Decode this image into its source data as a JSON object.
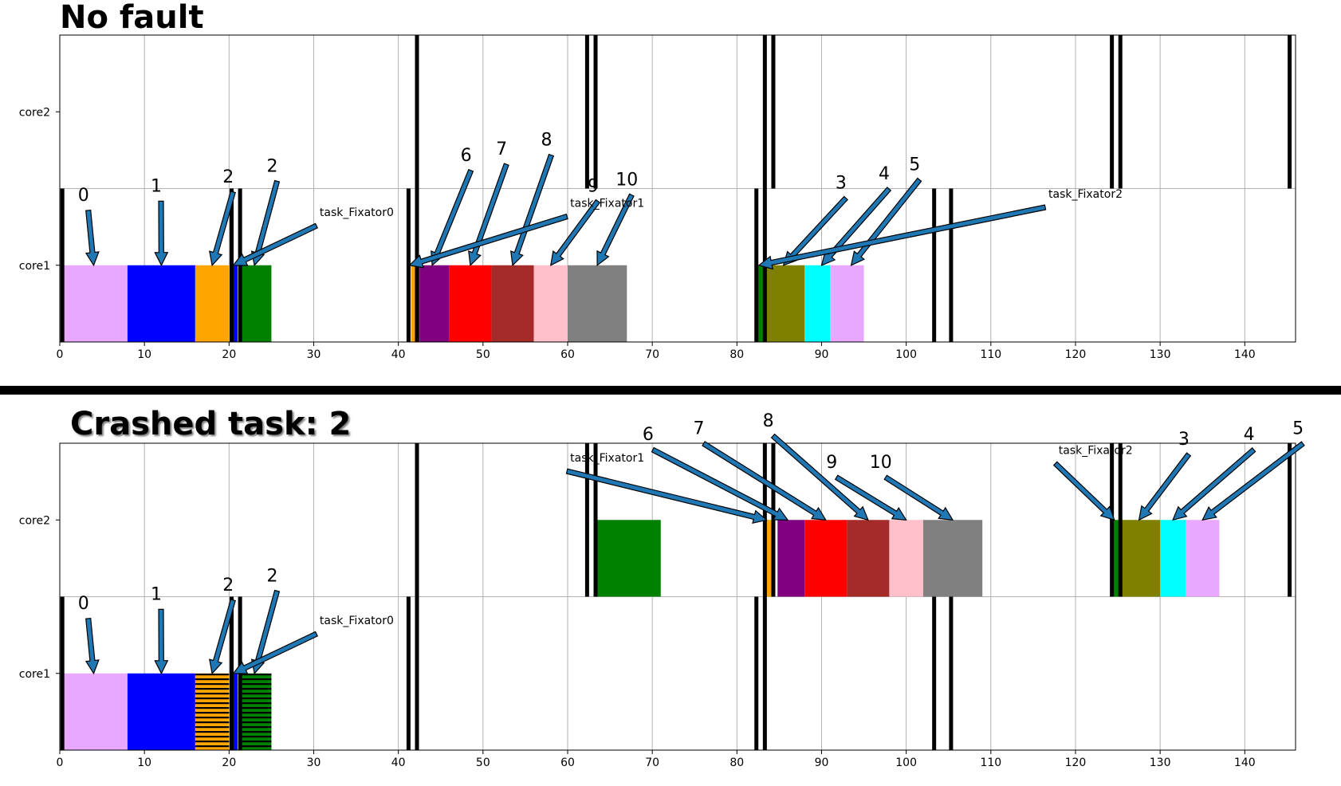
{
  "colors": {
    "0": "#e8a8ff",
    "1": "#0000ff",
    "2": "#ffa500",
    "f": "#008000",
    "6": "#800080",
    "7": "#ff0000",
    "8": "#a52a2a",
    "9": "#ffc0cb",
    "10": "#808080",
    "3": "#808000",
    "4": "#00ffff",
    "5": "#e8a8ff",
    "arrow": "#1f77b4",
    "grid": "#b0b0b0"
  },
  "chart_data": [
    {
      "type": "bar",
      "orientation": "horizontal-timeline",
      "title": "No fault",
      "categories": [
        "core1",
        "core2"
      ],
      "xlim": [
        0,
        146
      ],
      "xticks": [
        0,
        10,
        20,
        30,
        40,
        50,
        60,
        70,
        80,
        90,
        100,
        110,
        120,
        130,
        140
      ],
      "grid": true,
      "bars": [
        {
          "core": "core1",
          "start": 0.5,
          "end": 8,
          "color": "0",
          "hatch": false
        },
        {
          "core": "core1",
          "start": 8,
          "end": 16,
          "color": "1",
          "hatch": false
        },
        {
          "core": "core1",
          "start": 16,
          "end": 20,
          "color": "2",
          "hatch": false
        },
        {
          "core": "core1",
          "start": 20.5,
          "end": 21,
          "color": "1",
          "hatch": false
        },
        {
          "core": "core1",
          "start": 21.5,
          "end": 25,
          "color": "f",
          "hatch": false
        },
        {
          "core": "core1",
          "start": 41.5,
          "end": 42,
          "color": "2",
          "hatch": false
        },
        {
          "core": "core1",
          "start": 42,
          "end": 42.5,
          "color": "f",
          "hatch": false
        },
        {
          "core": "core1",
          "start": 42.5,
          "end": 46,
          "color": "6",
          "hatch": false
        },
        {
          "core": "core1",
          "start": 46,
          "end": 51,
          "color": "7",
          "hatch": false
        },
        {
          "core": "core1",
          "start": 51,
          "end": 56,
          "color": "8",
          "hatch": false
        },
        {
          "core": "core1",
          "start": 56,
          "end": 60,
          "color": "9",
          "hatch": false
        },
        {
          "core": "core1",
          "start": 60,
          "end": 67,
          "color": "10",
          "hatch": false
        },
        {
          "core": "core1",
          "start": 82.5,
          "end": 83.5,
          "color": "f",
          "hatch": false
        },
        {
          "core": "core1",
          "start": 83.5,
          "end": 88,
          "color": "3",
          "hatch": false
        },
        {
          "core": "core1",
          "start": 88,
          "end": 91,
          "color": "4",
          "hatch": false
        },
        {
          "core": "core1",
          "start": 91,
          "end": 95,
          "color": "5",
          "hatch": false
        }
      ],
      "markers": [
        {
          "core": "core1",
          "x": [
            0.3,
            20.3,
            21.3,
            41.2,
            42.2,
            82.3,
            83.3,
            103.3,
            105.3
          ]
        },
        {
          "core": "core2",
          "x": [
            42.2,
            62.3,
            63.3,
            83.3,
            84.3,
            124.3,
            125.3,
            145.3
          ]
        }
      ],
      "annotations": [
        {
          "text": "0",
          "kind": "num",
          "tx": 2.8,
          "ty": 0.92,
          "ax": 4,
          "ay": 0.5
        },
        {
          "text": "1",
          "kind": "num",
          "tx": 11.4,
          "ty": 0.98,
          "ax": 12,
          "ay": 0.5
        },
        {
          "text": "2",
          "kind": "num",
          "tx": 19.9,
          "ty": 1.04,
          "ax": 18,
          "ay": 0.5
        },
        {
          "text": "2",
          "kind": "num",
          "tx": 25.1,
          "ty": 1.11,
          "ax": 23,
          "ay": 0.5
        },
        {
          "text": "task_Fixator0",
          "kind": "fix",
          "tx": 30.7,
          "ty": 0.82,
          "ax": 20.5,
          "ay": 0.5
        },
        {
          "text": "6",
          "kind": "num",
          "tx": 48,
          "ty": 1.18,
          "ax": 44,
          "ay": 0.5
        },
        {
          "text": "7",
          "kind": "num",
          "tx": 52.2,
          "ty": 1.22,
          "ax": 48.5,
          "ay": 0.5
        },
        {
          "text": "8",
          "kind": "num",
          "tx": 57.5,
          "ty": 1.28,
          "ax": 53.5,
          "ay": 0.5
        },
        {
          "text": "9",
          "kind": "num",
          "tx": 63,
          "ty": 0.98,
          "ax": 58,
          "ay": 0.5
        },
        {
          "text": "10",
          "kind": "num",
          "tx": 67,
          "ty": 1.02,
          "ax": 63.5,
          "ay": 0.5
        },
        {
          "text": "task_Fixator1",
          "kind": "fix",
          "tx": 60.3,
          "ty": 0.88,
          "ax": 41.3,
          "ay": 0.5
        },
        {
          "text": "3",
          "kind": "num",
          "tx": 92.3,
          "ty": 1.0,
          "ax": 85.5,
          "ay": 0.5
        },
        {
          "text": "4",
          "kind": "num",
          "tx": 97.4,
          "ty": 1.06,
          "ax": 90,
          "ay": 0.5
        },
        {
          "text": "5",
          "kind": "num",
          "tx": 101,
          "ty": 1.12,
          "ax": 93.5,
          "ay": 0.5
        },
        {
          "text": "task_Fixator2",
          "kind": "fix",
          "tx": 116.8,
          "ty": 0.94,
          "ax": 82.6,
          "ay": 0.5
        }
      ]
    },
    {
      "type": "bar",
      "orientation": "horizontal-timeline",
      "title": "Crashed task: 2",
      "categories": [
        "core1",
        "core2"
      ],
      "xlim": [
        0,
        146
      ],
      "xticks": [
        0,
        10,
        20,
        30,
        40,
        50,
        60,
        70,
        80,
        90,
        100,
        110,
        120,
        130,
        140
      ],
      "grid": true,
      "bars": [
        {
          "core": "core1",
          "start": 0.5,
          "end": 8,
          "color": "0",
          "hatch": false
        },
        {
          "core": "core1",
          "start": 8,
          "end": 16,
          "color": "1",
          "hatch": false
        },
        {
          "core": "core1",
          "start": 16,
          "end": 20,
          "color": "2",
          "hatch": true
        },
        {
          "core": "core1",
          "start": 20.5,
          "end": 21,
          "color": "1",
          "hatch": false
        },
        {
          "core": "core1",
          "start": 21.5,
          "end": 25,
          "color": "f",
          "hatch": true
        },
        {
          "core": "core2",
          "start": 63.5,
          "end": 71,
          "color": "f",
          "hatch": false
        },
        {
          "core": "core2",
          "start": 83.5,
          "end": 84.3,
          "color": "2",
          "hatch": false
        },
        {
          "core": "core2",
          "start": 84.8,
          "end": 88,
          "color": "6",
          "hatch": false
        },
        {
          "core": "core2",
          "start": 88,
          "end": 93,
          "color": "7",
          "hatch": false
        },
        {
          "core": "core2",
          "start": 93,
          "end": 98,
          "color": "8",
          "hatch": false
        },
        {
          "core": "core2",
          "start": 98,
          "end": 102,
          "color": "9",
          "hatch": false
        },
        {
          "core": "core2",
          "start": 102,
          "end": 109,
          "color": "10",
          "hatch": false
        },
        {
          "core": "core2",
          "start": 124.5,
          "end": 125.5,
          "color": "f",
          "hatch": false
        },
        {
          "core": "core2",
          "start": 125.5,
          "end": 130,
          "color": "3",
          "hatch": false
        },
        {
          "core": "core2",
          "start": 130,
          "end": 133,
          "color": "4",
          "hatch": false
        },
        {
          "core": "core2",
          "start": 133,
          "end": 137,
          "color": "5",
          "hatch": false
        }
      ],
      "markers": [
        {
          "core": "core1",
          "x": [
            0.3,
            20.3,
            21.3,
            41.2,
            42.2,
            82.3,
            83.3,
            103.3,
            105.3
          ]
        },
        {
          "core": "core2",
          "x": [
            42.2,
            62.3,
            63.3,
            83.3,
            84.3,
            124.3,
            125.3,
            145.3
          ]
        }
      ],
      "annotations": [
        {
          "text": "0",
          "kind": "num",
          "tx": 2.8,
          "ty": 0.92,
          "ax": 4,
          "ay": 0.5
        },
        {
          "text": "1",
          "kind": "num",
          "tx": 11.4,
          "ty": 0.98,
          "ax": 12,
          "ay": 0.5
        },
        {
          "text": "2",
          "kind": "num",
          "tx": 19.9,
          "ty": 1.04,
          "ax": 18,
          "ay": 0.5
        },
        {
          "text": "2",
          "kind": "num",
          "tx": 25.1,
          "ty": 1.1,
          "ax": 23,
          "ay": 0.5
        },
        {
          "text": "task_Fixator0",
          "kind": "fix",
          "tx": 30.7,
          "ty": 0.82,
          "ax": 20.5,
          "ay": 0.5
        },
        {
          "text": "task_Fixator1",
          "kind": "fix",
          "tx": 60.3,
          "ty": 1.88,
          "ax": 83.5,
          "ay": 1.5
        },
        {
          "text": "6",
          "kind": "num",
          "tx": 69.5,
          "ty": 2.02,
          "ax": 86,
          "ay": 1.5
        },
        {
          "text": "7",
          "kind": "num",
          "tx": 75.5,
          "ty": 2.06,
          "ax": 90.5,
          "ay": 1.5
        },
        {
          "text": "8",
          "kind": "num",
          "tx": 83.7,
          "ty": 2.11,
          "ax": 95.5,
          "ay": 1.5
        },
        {
          "text": "9",
          "kind": "num",
          "tx": 91.2,
          "ty": 1.84,
          "ax": 100,
          "ay": 1.5
        },
        {
          "text": "10",
          "kind": "num",
          "tx": 97,
          "ty": 1.84,
          "ax": 105.5,
          "ay": 1.5
        },
        {
          "text": "task_Fixator2",
          "kind": "fix",
          "tx": 118,
          "ty": 1.93,
          "ax": 124.6,
          "ay": 1.5
        },
        {
          "text": "3",
          "kind": "num",
          "tx": 132.8,
          "ty": 1.99,
          "ax": 127.5,
          "ay": 1.5
        },
        {
          "text": "4",
          "kind": "num",
          "tx": 140.5,
          "ty": 2.02,
          "ax": 131.5,
          "ay": 1.5
        },
        {
          "text": "5",
          "kind": "num",
          "tx": 146.3,
          "ty": 2.06,
          "ax": 135,
          "ay": 1.5
        }
      ]
    }
  ]
}
